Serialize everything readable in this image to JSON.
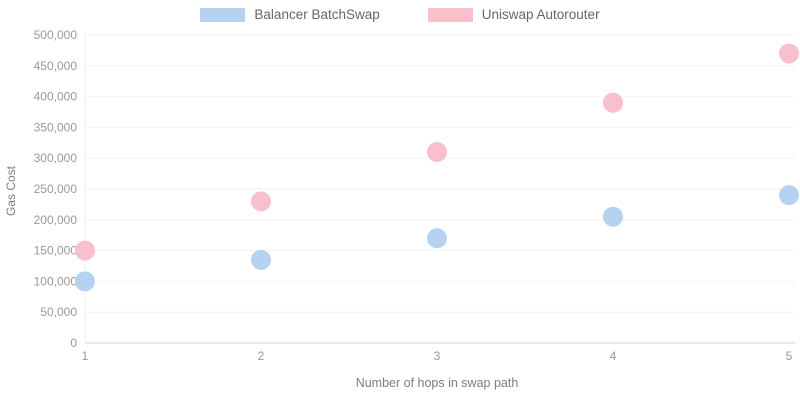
{
  "legend": {
    "items": [
      {
        "label": "Balancer BatchSwap",
        "color": "#b7d2f0"
      },
      {
        "label": "Uniswap Autorouter",
        "color": "#f8c0cb"
      }
    ]
  },
  "chart_data": {
    "type": "scatter",
    "x": [
      1,
      2,
      3,
      4,
      5
    ],
    "xlabel": "Number of hops in swap path",
    "ylabel": "Gas Cost",
    "ylim": [
      0,
      500000
    ],
    "ytick_step": 50000,
    "grid": true,
    "legend_position": "top-center",
    "series": [
      {
        "name": "Balancer BatchSwap",
        "color": "#b7d2f0",
        "values": [
          100000,
          135000,
          170000,
          205000,
          240000
        ]
      },
      {
        "name": "Uniswap Autorouter",
        "color": "#f8c0cb",
        "values": [
          150000,
          230000,
          310000,
          390000,
          470000
        ]
      }
    ],
    "styles": {
      "grid_color": "#f2f2f2",
      "baseline_color": "#e2e2e2",
      "axis_border_color": "#efefef",
      "tick_color": "#999999",
      "point_radius": 10
    }
  }
}
